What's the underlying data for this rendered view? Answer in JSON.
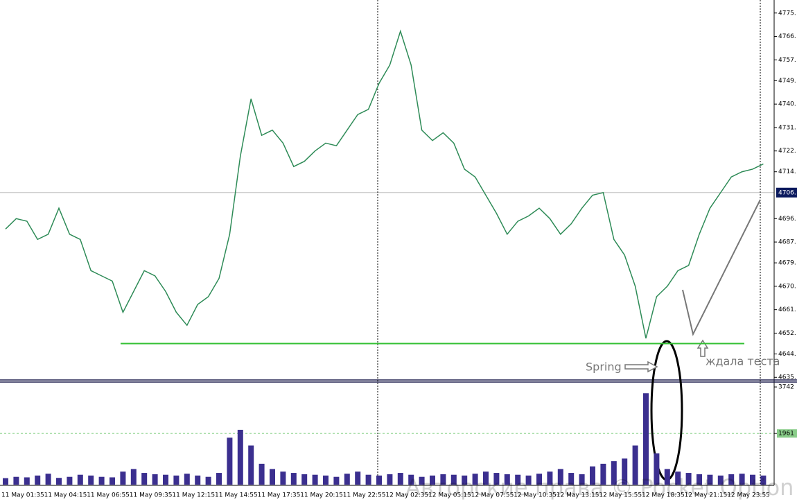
{
  "chart_data": [
    {
      "type": "line",
      "color": "#2e8b57",
      "values": [
        4692,
        4696,
        4695,
        4688,
        4690,
        4700,
        4690,
        4688,
        4676,
        4674,
        4672,
        4660,
        4668,
        4676,
        4674,
        4668,
        4660,
        4655,
        4663,
        4666,
        4673,
        4690,
        4720,
        4742,
        4728,
        4730,
        4725,
        4716,
        4718,
        4722,
        4725,
        4724,
        4730,
        4736,
        4738,
        4748,
        4755,
        4768,
        4755,
        4730,
        4726,
        4729,
        4725,
        4715,
        4712,
        4705,
        4698,
        4690,
        4695,
        4697,
        4700,
        4696,
        4690,
        4694,
        4700,
        4705,
        4706,
        4688,
        4682,
        4670,
        4650,
        4666,
        4670,
        4676,
        4678,
        4690,
        4700,
        4706,
        4712,
        4714,
        4715,
        4717
      ],
      "ylim": [
        4634,
        4780
      ],
      "yticks": [
        {
          "value": 4775,
          "label": "4775."
        },
        {
          "value": 4766,
          "label": "4766."
        },
        {
          "value": 4757,
          "label": "4757."
        },
        {
          "value": 4749,
          "label": "4749."
        },
        {
          "value": 4740,
          "label": "4740."
        },
        {
          "value": 4731,
          "label": "4731."
        },
        {
          "value": 4722,
          "label": "4722."
        },
        {
          "value": 4714,
          "label": "4714."
        },
        {
          "value": 4696,
          "label": "4696."
        },
        {
          "value": 4687,
          "label": "4687."
        },
        {
          "value": 4679,
          "label": "4679."
        },
        {
          "value": 4670,
          "label": "4670."
        },
        {
          "value": 4661,
          "label": "4661."
        },
        {
          "value": 4652,
          "label": "4652."
        },
        {
          "value": 4644,
          "label": "4644."
        },
        {
          "value": 4635,
          "label": "4635."
        }
      ],
      "current_price": {
        "value": 4706,
        "label": "4706."
      },
      "support_level": 4648,
      "annotations": [
        "Spring",
        "ждала теста"
      ]
    },
    {
      "type": "bar",
      "color": "#3b2f8f",
      "categories": [
        "11 May 01:35",
        null,
        null,
        null,
        "11 May 04:15",
        null,
        null,
        null,
        "11 May 06:55",
        null,
        null,
        null,
        "11 May 09:35",
        null,
        null,
        null,
        "11 May 12:15",
        null,
        null,
        null,
        "11 May 14:55",
        null,
        null,
        null,
        "11 May 17:35",
        null,
        null,
        null,
        "11 May 20:15",
        null,
        null,
        null,
        "11 May 22:55",
        null,
        null,
        null,
        "12 May 02:35",
        null,
        null,
        null,
        "12 May 05:15",
        null,
        null,
        null,
        "12 May 07:55",
        null,
        null,
        null,
        "12 May 10:35",
        null,
        null,
        null,
        "12 May 13:15",
        null,
        null,
        null,
        "12 May 15:55",
        null,
        null,
        null,
        "12 May 18:35",
        null,
        null,
        null,
        "12 May 21:15",
        null,
        null,
        null,
        "12 May 23:55",
        null,
        null,
        null
      ],
      "values": [
        250,
        300,
        280,
        350,
        420,
        260,
        300,
        380,
        350,
        300,
        280,
        500,
        600,
        450,
        400,
        380,
        350,
        420,
        350,
        300,
        450,
        1800,
        2100,
        1500,
        800,
        600,
        500,
        450,
        400,
        380,
        350,
        300,
        420,
        500,
        380,
        350,
        400,
        450,
        380,
        300,
        350,
        400,
        380,
        350,
        420,
        500,
        450,
        400,
        380,
        350,
        420,
        500,
        600,
        450,
        400,
        700,
        800,
        900,
        1000,
        1500,
        3500,
        1200,
        600,
        500,
        450,
        400,
        380,
        350,
        400,
        420,
        380,
        350
      ],
      "ylim": [
        0,
        3930
      ],
      "yticks": [
        3742,
        1961
      ],
      "grid": true
    }
  ],
  "watermark": "Авторские права © Pocket Option"
}
